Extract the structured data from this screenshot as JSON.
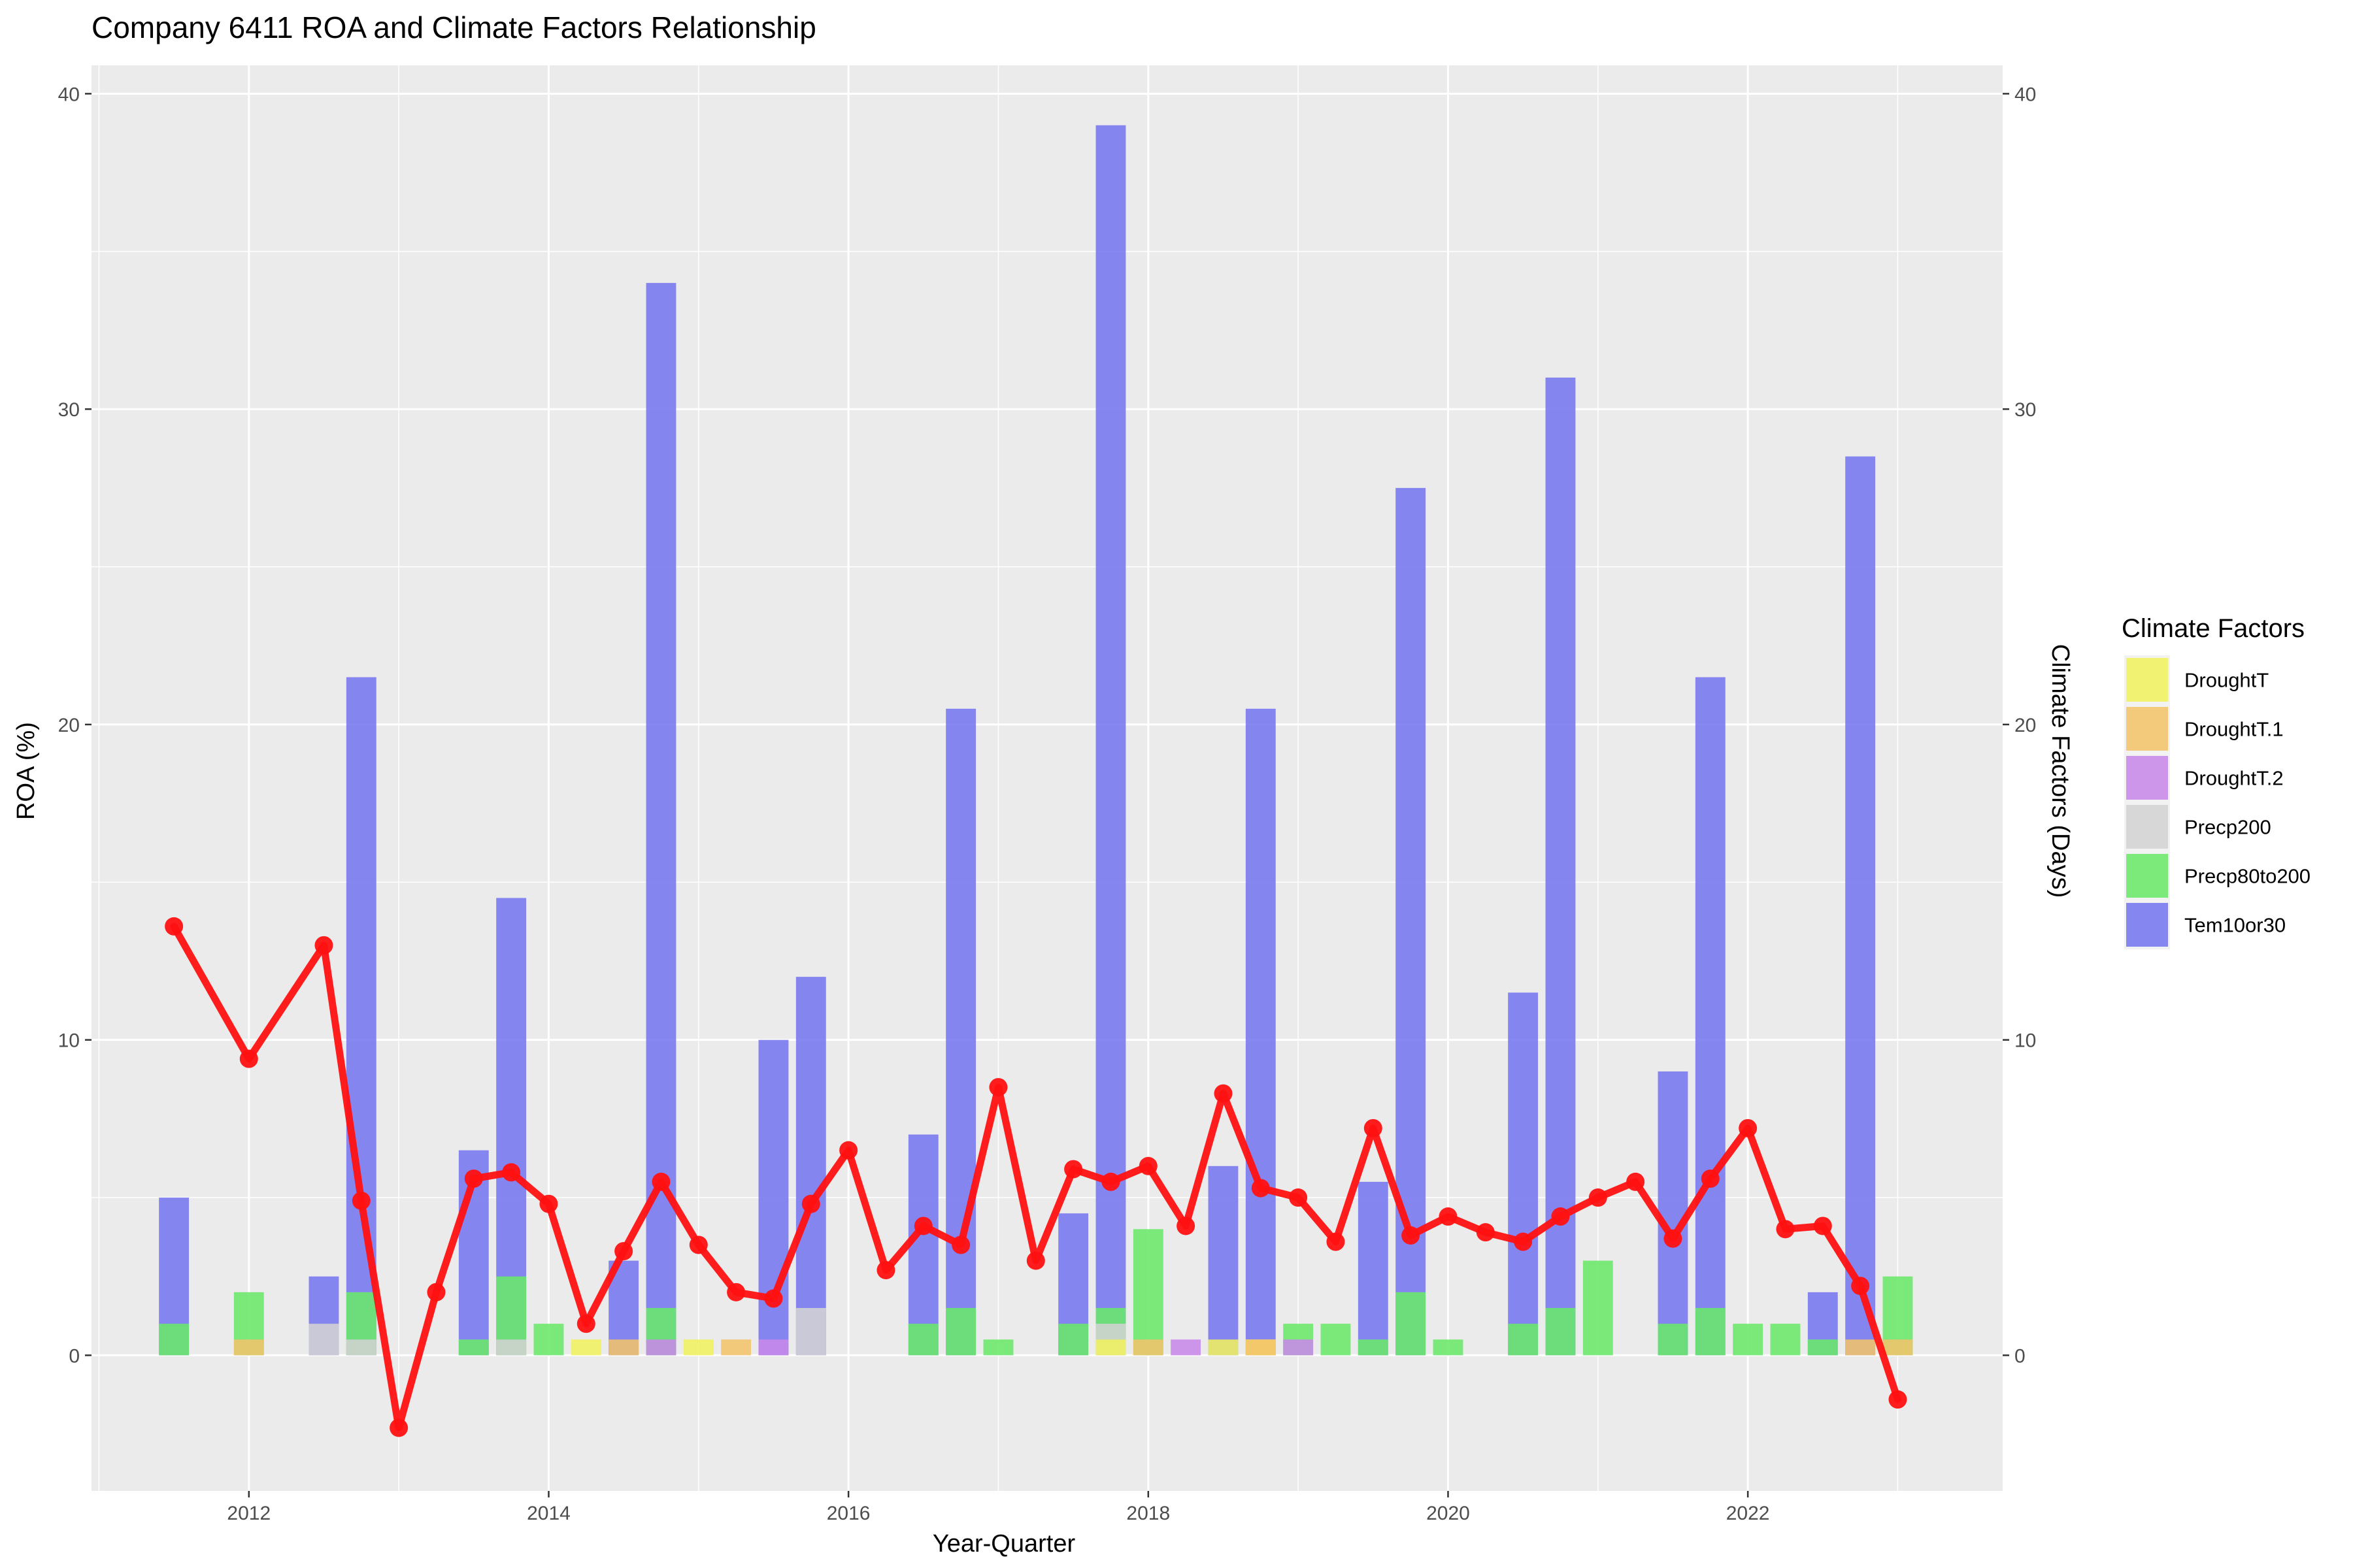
{
  "chart_data": {
    "type": "bar",
    "title": "Company 6411 ROA and Climate Factors Relationship",
    "xlabel": "Year-Quarter",
    "ylabel": "ROA (%)",
    "y2label": "Climate Factors (Days)",
    "xlim": [
      2010.95,
      2023.7
    ],
    "ylim": [
      -4.3,
      40.9
    ],
    "y2lim": [
      -4.3,
      40.9
    ],
    "x_ticks": [
      2012,
      2014,
      2016,
      2018,
      2020,
      2022
    ],
    "y_ticks": [
      0,
      10,
      20,
      30,
      40
    ],
    "y2_ticks": [
      0,
      10,
      20,
      30,
      40
    ],
    "grid": true,
    "legend": {
      "title": "Climate Factors",
      "position": "right"
    },
    "colors": {
      "DroughtT": "#f0f060",
      "DroughtT.1": "#f3c36b",
      "DroughtT.2": "#c889e8",
      "Precp200": "#d3d3d3",
      "Precp80to200": "#6ae86a",
      "Tem10or30": "#7676f0",
      "roa_line": "#ff1111",
      "panel_bg": "#ebebeb"
    },
    "bar_width_years": 0.2,
    "series": [
      {
        "name": "Tem10or30",
        "x": [
          2011.5,
          2012.5,
          2012.75,
          2013.5,
          2013.75,
          2014.5,
          2014.75,
          2015.5,
          2015.75,
          2016.5,
          2016.75,
          2017.5,
          2017.75,
          2018.5,
          2018.75,
          2019.5,
          2019.75,
          2020.5,
          2020.75,
          2021.5,
          2021.75,
          2022.5,
          2022.75
        ],
        "values": [
          5,
          2.5,
          21.5,
          6.5,
          14.5,
          3,
          34,
          10,
          12,
          7,
          20.5,
          4.5,
          39,
          6,
          20.5,
          5.5,
          27.5,
          11.5,
          31,
          9,
          21.5,
          2,
          28.5
        ]
      },
      {
        "name": "Precp80to200",
        "x": [
          2011.5,
          2012.0,
          2012.75,
          2013.5,
          2013.75,
          2014.0,
          2014.75,
          2016.5,
          2016.75,
          2017.0,
          2017.5,
          2017.75,
          2018.0,
          2019.0,
          2019.25,
          2019.5,
          2019.75,
          2020.0,
          2020.5,
          2020.75,
          2021.0,
          2021.5,
          2021.75,
          2022.0,
          2022.25,
          2022.5,
          2023.0
        ],
        "values": [
          1,
          2,
          2,
          0.5,
          2.5,
          1,
          1.5,
          1,
          1.5,
          0.5,
          1,
          1.5,
          4,
          1,
          1,
          0.5,
          2,
          0.5,
          1,
          1.5,
          3,
          1,
          1.5,
          1,
          1,
          0.5,
          2.5
        ]
      },
      {
        "name": "Precp200",
        "x": [
          2012.5,
          2012.75,
          2013.75,
          2015.75,
          2017.75,
          2018.75
        ],
        "values": [
          1,
          0.5,
          0.5,
          1.5,
          1,
          0.5
        ]
      },
      {
        "name": "DroughtT",
        "x": [
          2014.25,
          2015.0,
          2017.75,
          2018.5,
          2018.75
        ],
        "values": [
          0.5,
          0.5,
          0.5,
          0.5,
          0.5
        ]
      },
      {
        "name": "DroughtT.1",
        "x": [
          2012.0,
          2014.5,
          2015.25,
          2018.0,
          2018.75,
          2022.75,
          2023.0
        ],
        "values": [
          0.5,
          0.5,
          0.5,
          0.5,
          0.5,
          0.5,
          0.5
        ]
      },
      {
        "name": "DroughtT.2",
        "x": [
          2014.75,
          2015.5,
          2018.25,
          2019.0
        ],
        "values": [
          0.5,
          0.5,
          0.5,
          0.5
        ]
      },
      {
        "name": "ROA",
        "x": [
          2011.5,
          2012.0,
          2012.5,
          2012.75,
          2013.0,
          2013.25,
          2013.5,
          2013.75,
          2014.0,
          2014.25,
          2014.5,
          2014.75,
          2015.0,
          2015.25,
          2015.5,
          2015.75,
          2016.0,
          2016.25,
          2016.5,
          2016.75,
          2017.0,
          2017.25,
          2017.5,
          2017.75,
          2018.0,
          2018.25,
          2018.5,
          2018.75,
          2019.0,
          2019.25,
          2019.5,
          2019.75,
          2020.0,
          2020.25,
          2020.5,
          2020.75,
          2021.0,
          2021.25,
          2021.5,
          2021.75,
          2022.0,
          2022.25,
          2022.5,
          2022.75,
          2023.0
        ],
        "values": [
          13.6,
          9.4,
          13.0,
          4.9,
          -2.3,
          2.0,
          5.6,
          5.8,
          4.8,
          1.0,
          3.3,
          5.5,
          3.5,
          2.0,
          1.8,
          4.8,
          6.5,
          2.7,
          4.1,
          3.5,
          8.5,
          3.0,
          5.9,
          5.5,
          6.0,
          4.1,
          8.3,
          5.3,
          5.0,
          3.6,
          7.2,
          3.8,
          4.4,
          3.9,
          3.6,
          4.4,
          5.0,
          5.5,
          3.7,
          5.6,
          7.2,
          4.0,
          4.1,
          2.2,
          -1.4
        ]
      }
    ]
  }
}
